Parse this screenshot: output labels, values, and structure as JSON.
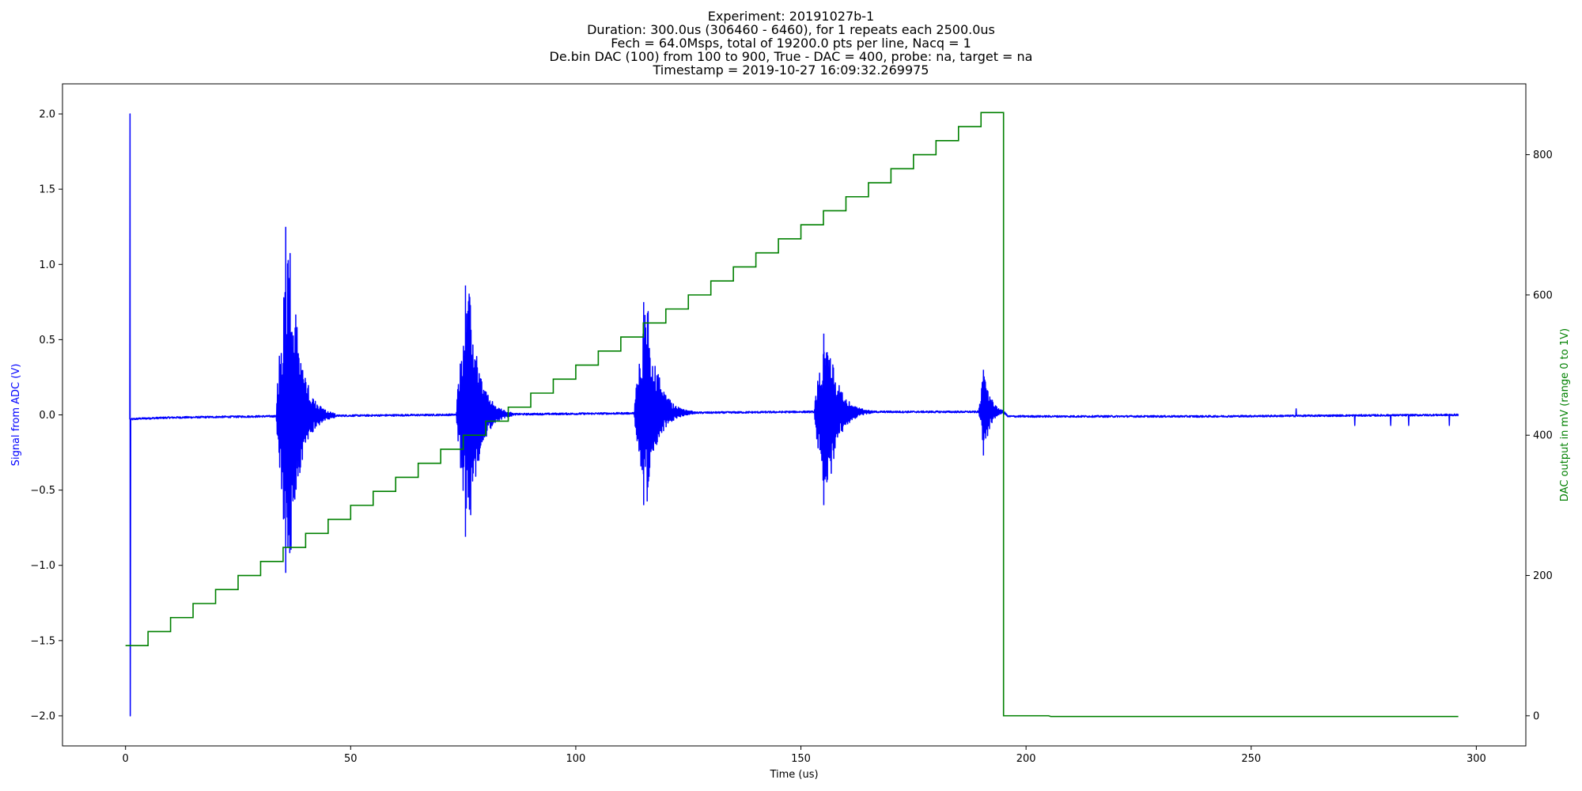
{
  "chart_data": {
    "type": "line",
    "title_lines": [
      "Experiment: 20191027b-1",
      "Duration: 300.0us (306460 - 6460), for 1 repeats each 2500.0us",
      "Fech = 64.0Msps, total of 19200.0 pts per line, Nacq = 1",
      "De.bin DAC (100) from 100 to 900, True - DAC = 400, probe: na, target = na",
      "Timestamp = 2019-10-27 16:09:32.269975"
    ],
    "xlabel": "Time (us)",
    "ylabel_left": "Signal from ADC (V)",
    "ylabel_right": "DAC output in mV (range 0 to 1V)",
    "xlim": [
      -14,
      311
    ],
    "ylim_left": [
      -2.2,
      2.2
    ],
    "ylim_right": [
      -43,
      901
    ],
    "x_ticks": [
      0,
      50,
      100,
      150,
      200,
      250,
      300
    ],
    "y_ticks_left": [
      -2.0,
      -1.5,
      -1.0,
      -0.5,
      0.0,
      0.5,
      1.0,
      1.5,
      2.0
    ],
    "y_ticks_left_labels": [
      "−2.0",
      "−1.5",
      "−1.0",
      "−0.5",
      "0.0",
      "0.5",
      "1.0",
      "1.5",
      "2.0"
    ],
    "y_ticks_right": [
      0,
      200,
      400,
      600,
      800
    ],
    "y_ticks_right_labels": [
      "0",
      "200",
      "400",
      "600",
      "800"
    ],
    "grid": false,
    "series": [
      {
        "axis": "left",
        "color": "#0000ff",
        "x_start": 0.95,
        "x_end": 296,
        "initial_spike": {
          "x": 1.0,
          "max": 2.0,
          "min": -2.0
        },
        "baseline": [
          [
            1.1,
            -0.03
          ],
          [
            3,
            -0.025
          ],
          [
            10,
            -0.018
          ],
          [
            30,
            -0.01
          ],
          [
            70,
            0.0
          ],
          [
            110,
            0.01
          ],
          [
            150,
            0.02
          ],
          [
            190,
            0.02
          ],
          [
            195,
            0.02
          ],
          [
            196,
            -0.01
          ],
          [
            240,
            -0.01
          ],
          [
            296,
            0.0
          ]
        ],
        "bursts": [
          {
            "start": 33.5,
            "end": 46.5,
            "max": 1.25,
            "min": -1.05
          },
          {
            "start": 73.5,
            "end": 86,
            "max": 0.86,
            "min": -0.81
          },
          {
            "start": 113,
            "end": 126,
            "max": 0.75,
            "min": -0.6
          },
          {
            "start": 153,
            "end": 166,
            "max": 0.54,
            "min": -0.6
          },
          {
            "start": 189.5,
            "end": 196,
            "max": 0.3,
            "min": -0.27
          }
        ],
        "glitches": [
          {
            "x": 260,
            "value": 0.04
          },
          {
            "x": 273,
            "value": -0.07
          },
          {
            "x": 281,
            "value": -0.07
          },
          {
            "x": 285,
            "value": -0.07
          },
          {
            "x": 294,
            "value": -0.07
          }
        ]
      },
      {
        "axis": "right",
        "color": "#008000",
        "steps": {
          "x_start": 0,
          "x_step": 5,
          "y_start": 100,
          "y_step": 20,
          "count": 39
        },
        "drop_x": 195,
        "after_drop": [
          [
            195,
            0
          ],
          [
            205,
            0
          ],
          [
            205.5,
            -1
          ],
          [
            296,
            -1
          ]
        ]
      }
    ]
  }
}
